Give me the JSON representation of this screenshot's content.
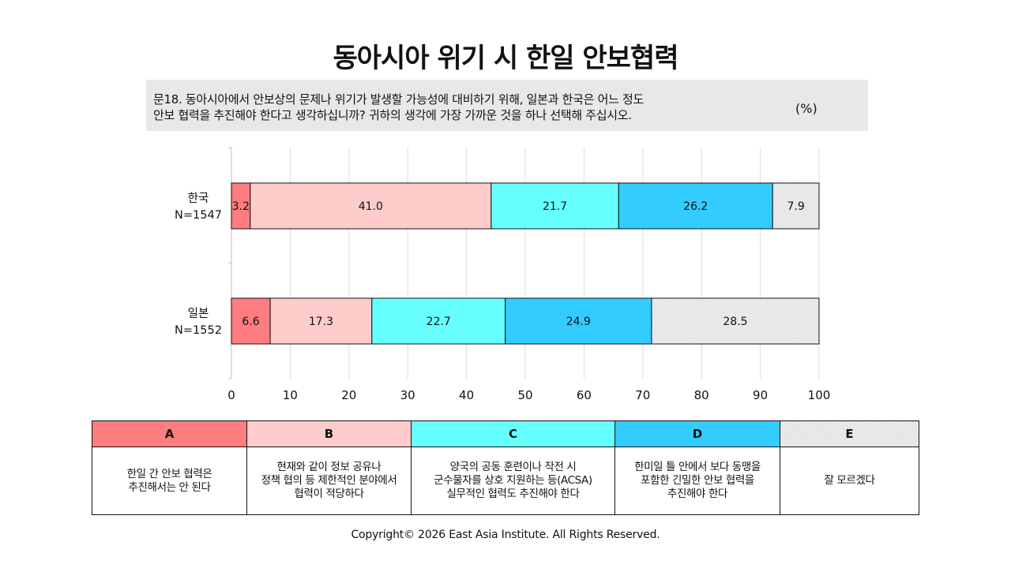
{
  "title": "동아시아 위기 시 한일 안보협력",
  "question": {
    "line1": "문18. 동아시아에서 안보상의 문제나 위기가 발생할 가능성에 대비하기 위해, 일본과 한국은 어느 정도",
    "line2": "안보 협력을 추진해야 한다고 생각하십니까? 귀하의 생각에 가장 가까운 것을 하나 선택해 주십시오.",
    "unit": "(%)"
  },
  "colors": {
    "A": "#ff7c80",
    "B": "#ffcccc",
    "C": "#66ffff",
    "D": "#33ccff",
    "E": "#ececec"
  },
  "chart_data": {
    "type": "bar",
    "orientation": "horizontal-stacked",
    "categories": [
      {
        "label": "한국",
        "n": "N=1547"
      },
      {
        "label": "일본",
        "n": "N=1552"
      }
    ],
    "series": [
      {
        "key": "A",
        "values": [
          3.2,
          6.6
        ]
      },
      {
        "key": "B",
        "values": [
          41.0,
          17.3
        ]
      },
      {
        "key": "C",
        "values": [
          21.7,
          22.7
        ]
      },
      {
        "key": "D",
        "values": [
          26.2,
          24.9
        ]
      },
      {
        "key": "E",
        "values": [
          7.9,
          28.5
        ]
      }
    ],
    "value_labels": [
      [
        "3.2",
        "41.0",
        "21.7",
        "26.2",
        "7.9"
      ],
      [
        "6.6",
        "17.3",
        "22.7",
        "24.9",
        "28.5"
      ]
    ],
    "xlim": [
      0,
      100
    ],
    "xticks": [
      0,
      10,
      20,
      30,
      40,
      50,
      60,
      70,
      80,
      90,
      100
    ],
    "grid": "vertical"
  },
  "legend": [
    {
      "key": "A",
      "label": "A",
      "desc": "한일 간 안보 협력은\n추진해서는 안 된다"
    },
    {
      "key": "B",
      "label": "B",
      "desc": "현재와 같이 정보 공유나\n정책 협의 등 제한적인 분야에서\n협력이 적당하다"
    },
    {
      "key": "C",
      "label": "C",
      "desc": "양국의 공동 훈련이나 작전 시\n군수물자를 상호 지원하는 등(ACSA)\n실무적인 협력도 추진해야 한다"
    },
    {
      "key": "D",
      "label": "D",
      "desc": "한미일 틀 안에서 보다 동맹을\n포함한 긴밀한 안보 협력을\n추진해야 한다"
    },
    {
      "key": "E",
      "label": "E",
      "desc": "잘 모르겠다"
    }
  ],
  "copyright": "Copyright© 2026 East Asia Institute. All Rights Reserved."
}
